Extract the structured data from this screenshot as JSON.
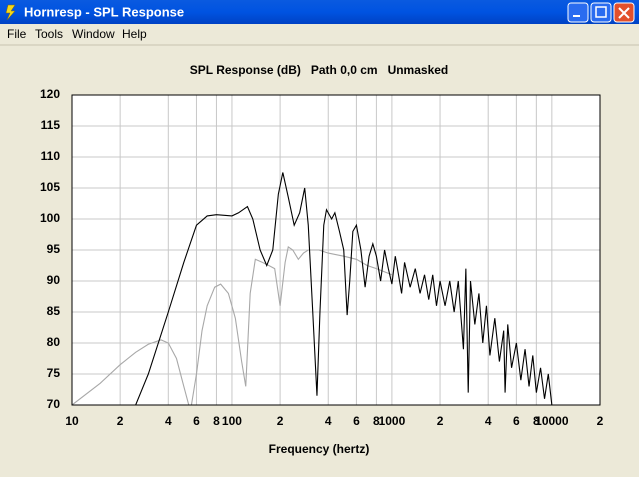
{
  "window": {
    "title": "Hornresp - SPL Response"
  },
  "menu": [
    "File",
    "Tools",
    "Window",
    "Help"
  ],
  "chart_data": {
    "type": "line",
    "title": "SPL Response (dB)   Path 0,0 cm   Unmasked",
    "x_label": "Frequency (hertz)",
    "xscale": "log",
    "xlim": [
      10,
      20000
    ],
    "xticks": [
      10,
      {
        "value": 20,
        "label": "2"
      },
      {
        "value": 40,
        "label": "4"
      },
      {
        "value": 60,
        "label": "6"
      },
      {
        "value": 80,
        "label": "8"
      },
      100,
      {
        "value": 200,
        "label": "2"
      },
      {
        "value": 400,
        "label": "4"
      },
      {
        "value": 600,
        "label": "6"
      },
      {
        "value": 800,
        "label": "8"
      },
      1000,
      {
        "value": 2000,
        "label": "2"
      },
      {
        "value": 4000,
        "label": "4"
      },
      {
        "value": 6000,
        "label": "6"
      },
      {
        "value": 8000,
        "label": "8"
      },
      10000,
      {
        "value": 20000,
        "label": "2"
      }
    ],
    "ylim": [
      70,
      120
    ],
    "yticks": [
      70,
      75,
      80,
      85,
      90,
      95,
      100,
      105,
      110,
      115,
      120
    ],
    "grid": true,
    "series": [
      {
        "color": "#a8a8a8",
        "x": [
          10,
          15,
          20,
          25,
          30,
          36,
          40,
          45,
          50,
          55,
          60,
          65,
          70,
          78,
          85,
          95,
          105,
          115,
          122,
          130,
          140,
          155,
          170,
          185,
          200,
          215,
          225,
          240,
          260,
          280,
          300,
          350,
          400,
          500,
          600,
          700,
          800,
          1000
        ],
        "values": [
          70,
          73.5,
          76.5,
          78.5,
          79.8,
          80.5,
          80,
          77.5,
          73,
          69,
          75,
          82,
          86,
          89,
          89.5,
          88,
          84,
          77,
          73,
          88,
          93.5,
          93,
          92.5,
          92,
          86,
          93,
          95.5,
          95,
          93.5,
          94.5,
          95,
          95,
          94.5,
          94,
          93.5,
          92.5,
          92,
          91
        ]
      },
      {
        "color": "#000000",
        "x": [
          25,
          30,
          40,
          50,
          60,
          70,
          80,
          100,
          110,
          125,
          135,
          150,
          165,
          180,
          195,
          208,
          225,
          245,
          265,
          285,
          300,
          320,
          340,
          355,
          375,
          390,
          420,
          440,
          470,
          500,
          525,
          545,
          570,
          600,
          640,
          680,
          720,
          760,
          800,
          850,
          900,
          950,
          1000,
          1050,
          1100,
          1150,
          1200,
          1300,
          1400,
          1500,
          1600,
          1700,
          1800,
          1900,
          2000,
          2150,
          2300,
          2450,
          2600,
          2800,
          2900,
          3000,
          3100,
          3300,
          3500,
          3700,
          3900,
          4100,
          4400,
          4700,
          5000,
          5100,
          5300,
          5600,
          6000,
          6400,
          6800,
          7200,
          7600,
          8000,
          8500,
          9000,
          9500,
          10000
        ],
        "values": [
          70,
          75,
          85,
          93,
          99,
          100.5,
          100.7,
          100.5,
          101,
          102,
          100,
          95,
          92.5,
          95,
          104,
          107.5,
          103.5,
          99,
          101,
          105,
          99,
          85,
          71.5,
          85,
          99,
          101.5,
          100,
          101,
          98,
          95,
          84.5,
          90,
          98,
          99,
          95,
          89,
          94,
          96,
          94,
          90,
          95,
          92,
          89.5,
          94,
          91,
          88,
          93,
          89,
          92,
          88,
          91,
          87,
          91,
          86,
          90,
          86,
          90,
          85,
          90,
          79,
          92,
          72,
          90,
          83,
          88,
          80,
          86,
          78,
          84,
          77,
          82,
          72,
          83,
          76,
          80,
          74,
          79,
          73,
          78,
          72,
          76,
          71,
          75,
          70
        ]
      }
    ]
  }
}
